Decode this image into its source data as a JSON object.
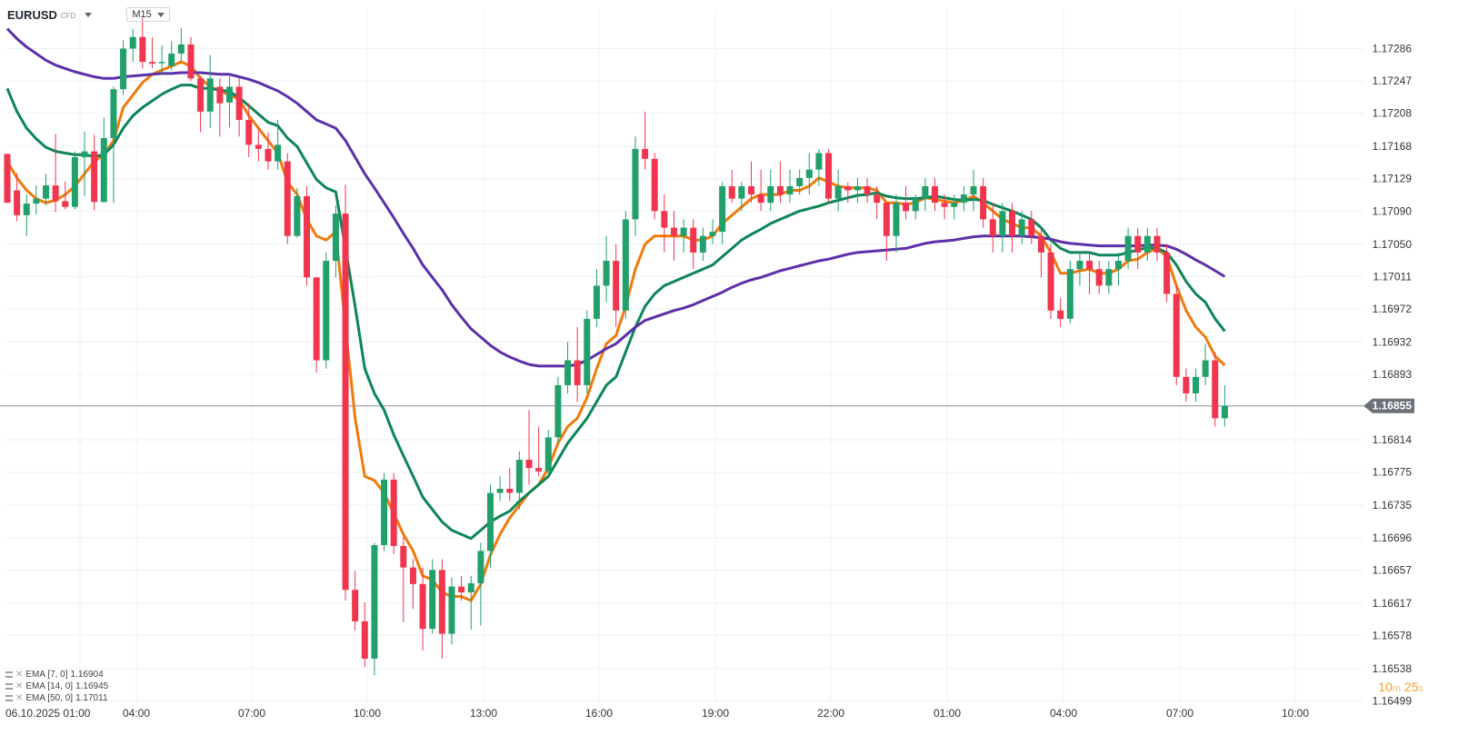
{
  "header": {
    "symbol": "EURUSD",
    "symbol_type": "CFD",
    "timeframe": "M15"
  },
  "legend": [
    {
      "label": "EMA [7, 0]",
      "value": "1.16904",
      "color": "#f07a0c"
    },
    {
      "label": "EMA [14, 0]",
      "value": "1.16945",
      "color": "#0e8557"
    },
    {
      "label": "EMA [50, 0]",
      "value": "1.17011",
      "color": "#5b30a8"
    }
  ],
  "countdown": {
    "minutes": "10",
    "m_unit": "m",
    "seconds": "25",
    "s_unit": "s"
  },
  "chart_data": {
    "type": "candlestick",
    "current_price": 1.16855,
    "price_label": "1.16855",
    "ylim": [
      1.1648,
      1.1733
    ],
    "y_ticks": [
      "1.17286",
      "1.17247",
      "1.17208",
      "1.17168",
      "1.17129",
      "1.17090",
      "1.17050",
      "1.17011",
      "1.16972",
      "1.16932",
      "1.16893",
      "1.16814",
      "1.16775",
      "1.16735",
      "1.16696",
      "1.16657",
      "1.16617",
      "1.16578",
      "1.16538",
      "1.16499"
    ],
    "x_ticks": [
      "06.10.2025  01:00",
      "04:00",
      "07:00",
      "10:00",
      "13:00",
      "16:00",
      "19:00",
      "22:00",
      "01:00",
      "04:00",
      "07:00",
      "10:00"
    ],
    "colors": {
      "up": "#22a06b",
      "down": "#f0364e",
      "price_line": "#8d939b",
      "label_bg": "#6b7178"
    },
    "candles": [
      [
        1.17159,
        1.17159,
        1.171,
        1.171
      ],
      [
        1.17115,
        1.17136,
        1.17078,
        1.17085
      ],
      [
        1.17085,
        1.1711,
        1.1706,
        1.17099
      ],
      [
        1.17099,
        1.17121,
        1.17086,
        1.17105
      ],
      [
        1.17105,
        1.17135,
        1.17097,
        1.17121
      ],
      [
        1.17121,
        1.17183,
        1.17089,
        1.17102
      ],
      [
        1.17102,
        1.17126,
        1.17092,
        1.17095
      ],
      [
        1.17095,
        1.17162,
        1.17092,
        1.17155
      ],
      [
        1.17155,
        1.17186,
        1.17108,
        1.17162
      ],
      [
        1.17162,
        1.17182,
        1.17091,
        1.17101
      ],
      [
        1.17101,
        1.17203,
        1.171,
        1.17178
      ],
      [
        1.17178,
        1.1724,
        1.171,
        1.17237
      ],
      [
        1.17237,
        1.17296,
        1.1723,
        1.17286
      ],
      [
        1.17286,
        1.1731,
        1.1727,
        1.173
      ],
      [
        1.173,
        1.17323,
        1.17262,
        1.1727
      ],
      [
        1.1727,
        1.173,
        1.17262,
        1.17268
      ],
      [
        1.1727,
        1.1729,
        1.17255,
        1.1727
      ],
      [
        1.17265,
        1.17295,
        1.1726,
        1.1728
      ],
      [
        1.1728,
        1.17311,
        1.17271,
        1.17291
      ],
      [
        1.17291,
        1.173,
        1.17247,
        1.1725
      ],
      [
        1.1725,
        1.17253,
        1.17185,
        1.1721
      ],
      [
        1.1721,
        1.17278,
        1.1719,
        1.1725
      ],
      [
        1.1724,
        1.1725,
        1.1718,
        1.1722
      ],
      [
        1.17221,
        1.17255,
        1.17191,
        1.1724
      ],
      [
        1.1724,
        1.1725,
        1.1718,
        1.172
      ],
      [
        1.172,
        1.1722,
        1.17155,
        1.1717
      ],
      [
        1.1717,
        1.1719,
        1.1715,
        1.17165
      ],
      [
        1.17165,
        1.17185,
        1.1714,
        1.1715
      ],
      [
        1.1715,
        1.172,
        1.1714,
        1.1717
      ],
      [
        1.1715,
        1.1716,
        1.1705,
        1.1706
      ],
      [
        1.1706,
        1.17118,
        1.17058,
        1.17108
      ],
      [
        1.17108,
        1.1712,
        1.17,
        1.1701
      ],
      [
        1.1701,
        1.1701,
        1.16895,
        1.1691
      ],
      [
        1.1691,
        1.1704,
        1.169,
        1.1703
      ],
      [
        1.1703,
        1.17097,
        1.1701,
        1.17087
      ],
      [
        1.17087,
        1.17122,
        1.1662,
        1.16633
      ],
      [
        1.16633,
        1.16656,
        1.16584,
        1.16595
      ],
      [
        1.16595,
        1.16618,
        1.1654,
        1.1655
      ],
      [
        1.1655,
        1.1669,
        1.1653,
        1.16687
      ],
      [
        1.16687,
        1.16774,
        1.1668,
        1.16766
      ],
      [
        1.16766,
        1.16774,
        1.16676,
        1.16686
      ],
      [
        1.16686,
        1.16697,
        1.16594,
        1.1666
      ],
      [
        1.1666,
        1.1667,
        1.1661,
        1.1664
      ],
      [
        1.1664,
        1.1666,
        1.1656,
        1.16586
      ],
      [
        1.16586,
        1.1667,
        1.1658,
        1.16657
      ],
      [
        1.16657,
        1.1667,
        1.1655,
        1.1658
      ],
      [
        1.1658,
        1.16648,
        1.16567,
        1.16637
      ],
      [
        1.16637,
        1.1665,
        1.1662,
        1.1663
      ],
      [
        1.1663,
        1.1665,
        1.16585,
        1.16641
      ],
      [
        1.16641,
        1.1669,
        1.1659,
        1.1668
      ],
      [
        1.1668,
        1.1676,
        1.1666,
        1.1675
      ],
      [
        1.1675,
        1.1677,
        1.1674,
        1.16755
      ],
      [
        1.16755,
        1.1678,
        1.1674,
        1.1675
      ],
      [
        1.1675,
        1.168,
        1.1673,
        1.1679
      ],
      [
        1.1679,
        1.1685,
        1.1676,
        1.1678
      ],
      [
        1.1678,
        1.1683,
        1.1677,
        1.16776
      ],
      [
        1.16776,
        1.16826,
        1.1677,
        1.16817
      ],
      [
        1.16817,
        1.1689,
        1.1681,
        1.1688
      ],
      [
        1.1688,
        1.16932,
        1.1687,
        1.1691
      ],
      [
        1.1691,
        1.1695,
        1.1686,
        1.1688
      ],
      [
        1.1688,
        1.1697,
        1.1687,
        1.1696
      ],
      [
        1.1696,
        1.1702,
        1.1695,
        1.17
      ],
      [
        1.17,
        1.1706,
        1.1698,
        1.1703
      ],
      [
        1.1703,
        1.1705,
        1.1695,
        1.1697
      ],
      [
        1.1697,
        1.1709,
        1.1696,
        1.1708
      ],
      [
        1.1708,
        1.1718,
        1.1706,
        1.17165
      ],
      [
        1.17165,
        1.1721,
        1.1714,
        1.17153
      ],
      [
        1.17153,
        1.1716,
        1.1708,
        1.1709
      ],
      [
        1.1709,
        1.1711,
        1.1704,
        1.1707
      ],
      [
        1.1707,
        1.1709,
        1.1703,
        1.1706
      ],
      [
        1.1706,
        1.1708,
        1.1704,
        1.1707
      ],
      [
        1.1707,
        1.1708,
        1.1702,
        1.1704
      ],
      [
        1.1704,
        1.1707,
        1.1703,
        1.1706
      ],
      [
        1.1706,
        1.1708,
        1.1705,
        1.17065
      ],
      [
        1.17065,
        1.17125,
        1.1705,
        1.1712
      ],
      [
        1.1712,
        1.1714,
        1.171,
        1.17105
      ],
      [
        1.17105,
        1.17125,
        1.1709,
        1.1712
      ],
      [
        1.1712,
        1.1715,
        1.171,
        1.1711
      ],
      [
        1.1711,
        1.1714,
        1.1709,
        1.171
      ],
      [
        1.171,
        1.1714,
        1.1709,
        1.1712
      ],
      [
        1.1712,
        1.1715,
        1.171,
        1.1711
      ],
      [
        1.1711,
        1.1714,
        1.171,
        1.1712
      ],
      [
        1.1712,
        1.1714,
        1.1711,
        1.1713
      ],
      [
        1.1713,
        1.1716,
        1.1711,
        1.1714
      ],
      [
        1.1714,
        1.17165,
        1.1712,
        1.1716
      ],
      [
        1.1716,
        1.17165,
        1.171,
        1.17105
      ],
      [
        1.17105,
        1.1714,
        1.1709,
        1.1712
      ],
      [
        1.1712,
        1.17125,
        1.171,
        1.17115
      ],
      [
        1.17115,
        1.1713,
        1.171,
        1.1712
      ],
      [
        1.1712,
        1.1713,
        1.171,
        1.1711
      ],
      [
        1.1711,
        1.1712,
        1.1708,
        1.171
      ],
      [
        1.171,
        1.171,
        1.1703,
        1.1706
      ],
      [
        1.1706,
        1.1711,
        1.1704,
        1.171
      ],
      [
        1.171,
        1.1712,
        1.1708,
        1.1709
      ],
      [
        1.1709,
        1.1711,
        1.1708,
        1.17105
      ],
      [
        1.17105,
        1.1713,
        1.1709,
        1.1712
      ],
      [
        1.1712,
        1.1713,
        1.1709,
        1.171
      ],
      [
        1.171,
        1.1711,
        1.1708,
        1.17095
      ],
      [
        1.17095,
        1.1711,
        1.1708,
        1.171
      ],
      [
        1.171,
        1.1712,
        1.1709,
        1.1711
      ],
      [
        1.1711,
        1.1714,
        1.1709,
        1.1712
      ],
      [
        1.1712,
        1.1713,
        1.1707,
        1.1708
      ],
      [
        1.1708,
        1.171,
        1.1704,
        1.1706
      ],
      [
        1.1706,
        1.171,
        1.1704,
        1.1709
      ],
      [
        1.1709,
        1.171,
        1.1704,
        1.1706
      ],
      [
        1.1706,
        1.1709,
        1.1705,
        1.1708
      ],
      [
        1.1708,
        1.1709,
        1.1705,
        1.1706
      ],
      [
        1.1706,
        1.1707,
        1.1701,
        1.1704
      ],
      [
        1.1704,
        1.1705,
        1.1696,
        1.1697
      ],
      [
        1.1697,
        1.16985,
        1.1695,
        1.1696
      ],
      [
        1.1696,
        1.1703,
        1.16955,
        1.1702
      ],
      [
        1.1702,
        1.1704,
        1.17,
        1.1703
      ],
      [
        1.1703,
        1.1704,
        1.1699,
        1.1702
      ],
      [
        1.1702,
        1.1703,
        1.1699,
        1.17
      ],
      [
        1.17,
        1.1703,
        1.1699,
        1.1702
      ],
      [
        1.1702,
        1.1704,
        1.17,
        1.1703
      ],
      [
        1.1703,
        1.1707,
        1.1702,
        1.1706
      ],
      [
        1.1706,
        1.1707,
        1.1702,
        1.1704
      ],
      [
        1.1704,
        1.1707,
        1.1703,
        1.1706
      ],
      [
        1.1706,
        1.1707,
        1.1703,
        1.1704
      ],
      [
        1.1704,
        1.1705,
        1.1698,
        1.1699
      ],
      [
        1.1699,
        1.17,
        1.1688,
        1.1689
      ],
      [
        1.1689,
        1.169,
        1.1686,
        1.1687
      ],
      [
        1.1687,
        1.169,
        1.1686,
        1.1689
      ],
      [
        1.1689,
        1.1693,
        1.1688,
        1.1691
      ],
      [
        1.1691,
        1.1692,
        1.1683,
        1.1684
      ],
      [
        1.1684,
        1.1688,
        1.1683,
        1.16855
      ]
    ],
    "series": [
      {
        "name": "EMA [7, 0]",
        "color": "#f07a0c",
        "values": [
          1.1715,
          1.1713,
          1.17115,
          1.17105,
          1.171,
          1.17103,
          1.1711,
          1.1712,
          1.17135,
          1.1715,
          1.17158,
          1.17175,
          1.17215,
          1.1723,
          1.17245,
          1.17255,
          1.1726,
          1.17265,
          1.1727,
          1.17265,
          1.1725,
          1.1724,
          1.17235,
          1.1723,
          1.17225,
          1.17205,
          1.1719,
          1.17175,
          1.1716,
          1.17125,
          1.1711,
          1.1708,
          1.1706,
          1.17055,
          1.17065,
          1.1695,
          1.1684,
          1.1677,
          1.16765,
          1.1675,
          1.16725,
          1.167,
          1.1668,
          1.1665,
          1.16645,
          1.1663,
          1.16625,
          1.16625,
          1.1662,
          1.1664,
          1.16675,
          1.167,
          1.1672,
          1.16735,
          1.1675,
          1.1676,
          1.1678,
          1.1681,
          1.1683,
          1.1684,
          1.16865,
          1.169,
          1.1693,
          1.1694,
          1.16975,
          1.1702,
          1.1705,
          1.1706,
          1.1706,
          1.1706,
          1.1706,
          1.17055,
          1.17055,
          1.1706,
          1.17075,
          1.17085,
          1.17095,
          1.17105,
          1.1711,
          1.1711,
          1.1711,
          1.17115,
          1.17115,
          1.1712,
          1.1713,
          1.17125,
          1.1712,
          1.17118,
          1.17118,
          1.17118,
          1.17115,
          1.171,
          1.171,
          1.17098,
          1.171,
          1.17106,
          1.17104,
          1.17102,
          1.171,
          1.17103,
          1.17108,
          1.171,
          1.1709,
          1.1708,
          1.17075,
          1.1707,
          1.1707,
          1.1706,
          1.1704,
          1.17015,
          1.17015,
          1.17018,
          1.1702,
          1.17015,
          1.17015,
          1.1702,
          1.1703,
          1.17032,
          1.1704,
          1.17045,
          1.17035,
          1.17,
          1.1697,
          1.1695,
          1.16938,
          1.16915,
          1.16904
        ]
      },
      {
        "name": "EMA [14, 0]",
        "color": "#0e8557",
        "values": [
          1.17238,
          1.1721,
          1.1719,
          1.17177,
          1.17167,
          1.17162,
          1.1716,
          1.17158,
          1.17158,
          1.17156,
          1.17158,
          1.1717,
          1.1719,
          1.17205,
          1.17215,
          1.17223,
          1.17231,
          1.17237,
          1.17242,
          1.17242,
          1.17238,
          1.17238,
          1.17236,
          1.17234,
          1.17227,
          1.17217,
          1.17207,
          1.17197,
          1.17193,
          1.17178,
          1.17168,
          1.17148,
          1.17128,
          1.17118,
          1.17113,
          1.17045,
          1.16975,
          1.169,
          1.1687,
          1.1685,
          1.1682,
          1.16795,
          1.1677,
          1.16745,
          1.1673,
          1.16715,
          1.16705,
          1.167,
          1.16695,
          1.16705,
          1.16715,
          1.16722,
          1.16728,
          1.1674,
          1.1675,
          1.1676,
          1.1677,
          1.1679,
          1.1681,
          1.16825,
          1.1684,
          1.1686,
          1.1688,
          1.1689,
          1.1692,
          1.1695,
          1.16975,
          1.1699,
          1.17,
          1.17005,
          1.1701,
          1.17015,
          1.1702,
          1.17025,
          1.17035,
          1.17045,
          1.17055,
          1.17062,
          1.17068,
          1.17075,
          1.1708,
          1.17085,
          1.1709,
          1.17093,
          1.17096,
          1.171,
          1.17103,
          1.17106,
          1.17109,
          1.1711,
          1.17112,
          1.17108,
          1.17106,
          1.17105,
          1.17105,
          1.17106,
          1.17108,
          1.17106,
          1.17104,
          1.17103,
          1.17104,
          1.17103,
          1.17098,
          1.17094,
          1.1709,
          1.17085,
          1.1708,
          1.1707,
          1.17055,
          1.17045,
          1.1704,
          1.1704,
          1.1704,
          1.17037,
          1.17037,
          1.17037,
          1.1704,
          1.17043,
          1.17046,
          1.17045,
          1.1704,
          1.17025,
          1.17005,
          1.1699,
          1.1698,
          1.1696,
          1.16945
        ]
      },
      {
        "name": "EMA [50, 0]",
        "color": "#5b30a8",
        "values": [
          1.1731,
          1.17298,
          1.17288,
          1.1728,
          1.17272,
          1.17266,
          1.17262,
          1.17258,
          1.17255,
          1.17252,
          1.1725,
          1.1725,
          1.17252,
          1.17253,
          1.17254,
          1.17255,
          1.17256,
          1.17256,
          1.17257,
          1.17257,
          1.17257,
          1.17256,
          1.17255,
          1.17255,
          1.17252,
          1.17249,
          1.17245,
          1.1724,
          1.17235,
          1.17228,
          1.1722,
          1.1721,
          1.172,
          1.17195,
          1.1719,
          1.17175,
          1.17155,
          1.17135,
          1.17118,
          1.171,
          1.17082,
          1.17063,
          1.17045,
          1.17025,
          1.1701,
          1.16995,
          1.16977,
          1.16962,
          1.16948,
          1.16938,
          1.16928,
          1.1692,
          1.16914,
          1.16909,
          1.16905,
          1.16903,
          1.16903,
          1.16903,
          1.16903,
          1.16905,
          1.1691,
          1.16917,
          1.16924,
          1.1693,
          1.1694,
          1.1695,
          1.16958,
          1.16962,
          1.16966,
          1.1697,
          1.16973,
          1.16977,
          1.16982,
          1.16987,
          1.16992,
          1.16998,
          1.17003,
          1.17007,
          1.1701,
          1.17014,
          1.17018,
          1.17021,
          1.17024,
          1.17027,
          1.1703,
          1.17032,
          1.17035,
          1.17038,
          1.1704,
          1.17041,
          1.17042,
          1.17043,
          1.17044,
          1.17045,
          1.17048,
          1.17051,
          1.17053,
          1.17054,
          1.17055,
          1.17057,
          1.17059,
          1.1706,
          1.1706,
          1.1706,
          1.1706,
          1.1706,
          1.17059,
          1.17058,
          1.17056,
          1.17053,
          1.17051,
          1.1705,
          1.17049,
          1.17048,
          1.17048,
          1.17048,
          1.17048,
          1.17048,
          1.17049,
          1.17049,
          1.17048,
          1.17044,
          1.17038,
          1.17031,
          1.17025,
          1.17018,
          1.17011
        ]
      }
    ]
  }
}
